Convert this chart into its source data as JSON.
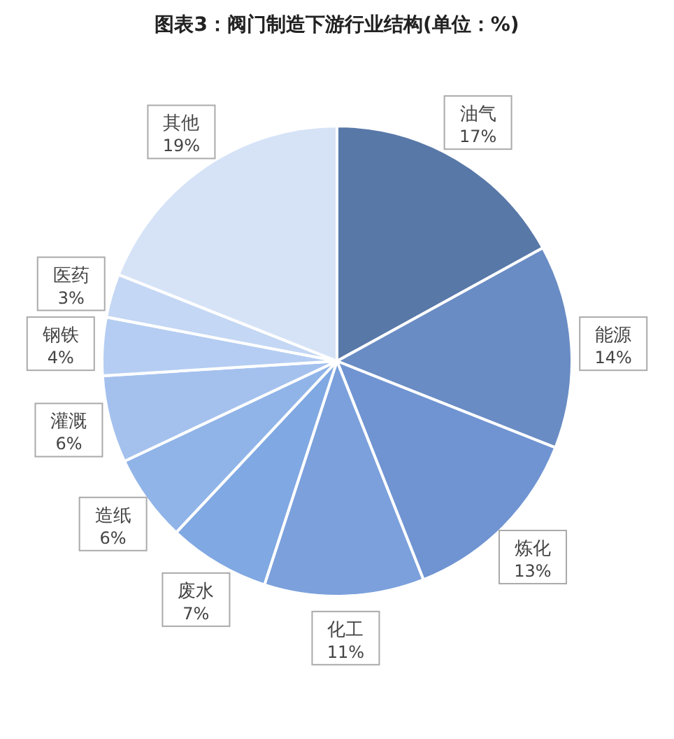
{
  "chart_data": {
    "type": "pie",
    "title": "图表3：阀门制造下游行业结构(单位：%)",
    "categories": [
      "油气",
      "能源",
      "炼化",
      "化工",
      "废水",
      "造纸",
      "灌溉",
      "钢铁",
      "医药",
      "其他"
    ],
    "values": [
      17,
      14,
      13,
      11,
      7,
      6,
      6,
      4,
      3,
      19
    ],
    "value_labels": [
      "17%",
      "14%",
      "13%",
      "11%",
      "7%",
      "6%",
      "6%",
      "4%",
      "3%",
      "19%"
    ],
    "colors": [
      "#5878a8",
      "#6a8cc4",
      "#7094d2",
      "#7ba0dc",
      "#80a8e2",
      "#90b4e8",
      "#a4c1ee",
      "#b5cdf2",
      "#c4d7f4",
      "#d6e3f7"
    ]
  }
}
